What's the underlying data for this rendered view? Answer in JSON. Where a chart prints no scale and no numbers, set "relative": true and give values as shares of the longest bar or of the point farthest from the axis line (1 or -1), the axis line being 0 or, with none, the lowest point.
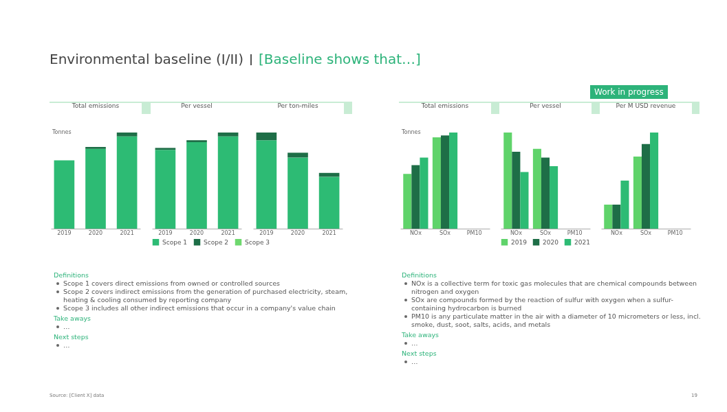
{
  "chart_data": [
    {
      "type": "bar",
      "relative": true,
      "stacked": true,
      "title": "Total emissions",
      "ylabel": "Tonnes",
      "categories": [
        "2019",
        "2020",
        "2021"
      ],
      "series": [
        {
          "color": "#2dbb74",
          "values": [
            0.71,
            0.83,
            0.96
          ]
        },
        {
          "color": "#1e6e47",
          "values": [
            0,
            0.02,
            0.04
          ]
        },
        {
          "color": "#6ed86e",
          "values": [
            null,
            null,
            null
          ]
        }
      ],
      "annotations": [
        "Environmental baseline (I/II)",
        "[Baseline shows that…]",
        "Definitions",
        "Scope 1 covers direct emissions from owned or controlled sources",
        "Scope 2 covers indirect emissions from the generation of purchased electricity, steam, heating & cooling consumed by reporting company",
        "Scope 3 includes all other indirect emissions that occur in a company's value chain",
        "Take aways",
        "…",
        "Next steps",
        "…",
        "Source: [Client X] data"
      ]
    },
    {
      "type": "bar",
      "relative": true,
      "stacked": true,
      "title": "Per vessel",
      "legend": "bottom",
      "categories": [
        "2019",
        "2020",
        "2021"
      ],
      "series": [
        {
          "name": "Scope 1",
          "color": "#2dbb74",
          "values": [
            0.82,
            0.9,
            0.96
          ]
        },
        {
          "name": "Scope 2",
          "color": "#1e6e47",
          "values": [
            0.02,
            0.02,
            0.04
          ]
        },
        {
          "name": "Scope 3",
          "color": "#6ed86e",
          "values": [
            null,
            null,
            null
          ]
        }
      ]
    },
    {
      "type": "bar",
      "relative": true,
      "stacked": true,
      "title": "Per ton-miles",
      "categories": [
        "2019",
        "2020",
        "2021"
      ],
      "series": [
        {
          "color": "#2dbb74",
          "values": [
            0.92,
            0.74,
            0.54
          ]
        },
        {
          "color": "#1e6e47",
          "values": [
            0.08,
            0.05,
            0.04
          ]
        },
        {
          "color": "#6ed86e",
          "values": [
            null,
            null,
            null
          ]
        }
      ]
    },
    {
      "type": "bar",
      "relative": true,
      "title": "Total emissions",
      "ylabel": "Tonnes",
      "categories": [
        "NOx",
        "SOx",
        "PM10"
      ],
      "series": [
        {
          "color": "#5fd36a",
          "values": [
            0.57,
            0.95,
            null
          ]
        },
        {
          "color": "#1e6e47",
          "values": [
            0.66,
            0.97,
            null
          ]
        },
        {
          "color": "#2dbb74",
          "values": [
            0.74,
            1,
            null
          ]
        }
      ],
      "annotations": [
        "Work in progress",
        "Definitions",
        "NOx is a collective term for toxic gas molecules that are chemical compounds between nitrogen and oxygen",
        "SOx are compounds formed by the reaction of sulfur with oxygen when a sulfur-containing hydrocarbon is burned",
        "PM10 is any particulate matter in the air with a diameter of 10 micrometers or less, incl. smoke, dust, soot, salts, acids, and metals",
        "Take aways",
        "…",
        "Next steps",
        "…",
        "19"
      ]
    },
    {
      "type": "bar",
      "relative": true,
      "title": "Per vessel",
      "legend": "bottom",
      "categories": [
        "NOx",
        "SOx",
        "PM10"
      ],
      "series": [
        {
          "name": "2019",
          "color": "#5fd36a",
          "values": [
            1,
            0.83,
            null
          ]
        },
        {
          "name": "2020",
          "color": "#1e6e47",
          "values": [
            0.8,
            0.74,
            null
          ]
        },
        {
          "name": "2021",
          "color": "#2dbb74",
          "values": [
            0.59,
            0.65,
            null
          ]
        }
      ]
    },
    {
      "type": "bar",
      "relative": true,
      "title": "Per M USD revenue",
      "categories": [
        "NOx",
        "SOx",
        "PM10"
      ],
      "series": [
        {
          "color": "#5fd36a",
          "values": [
            0.25,
            0.75,
            null
          ]
        },
        {
          "color": "#1e6e47",
          "values": [
            0.25,
            0.88,
            null
          ]
        },
        {
          "color": "#2dbb74",
          "values": [
            0.5,
            1,
            null
          ]
        }
      ]
    }
  ]
}
